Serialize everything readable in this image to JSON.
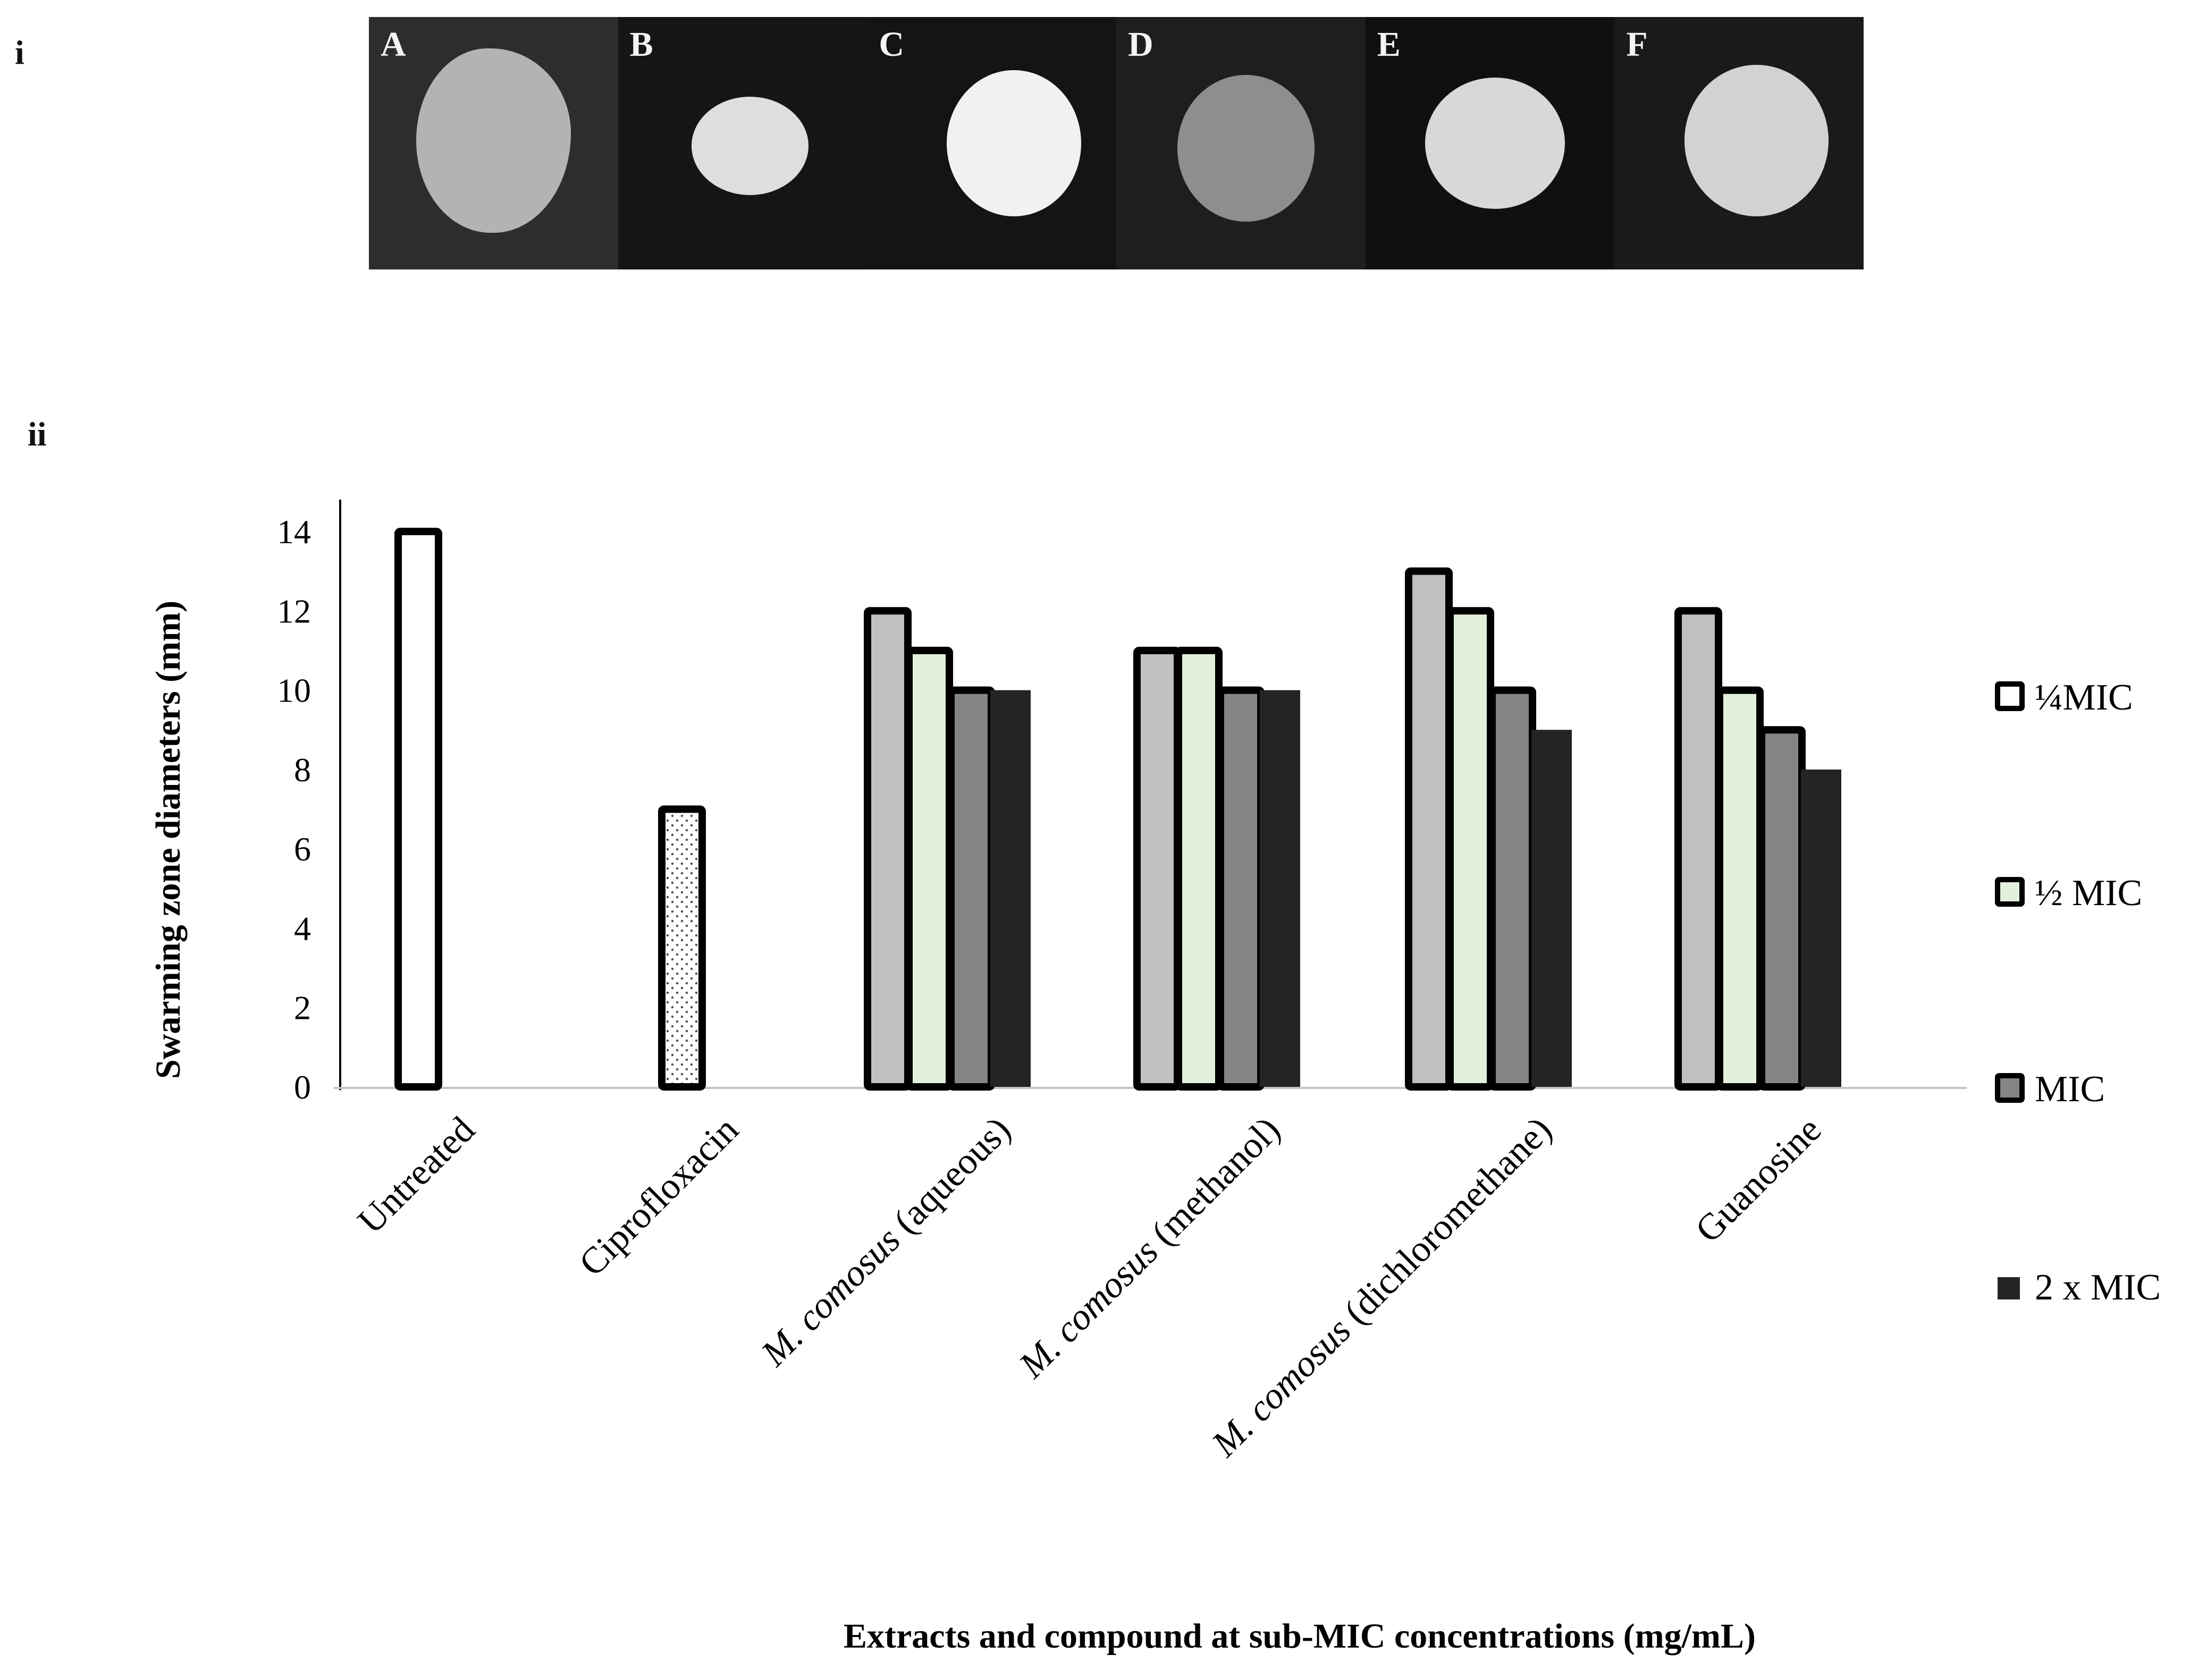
{
  "panel_labels": {
    "top": "i",
    "bottom": "ii"
  },
  "photo_panel": {
    "plates": [
      {
        "letter": "A",
        "background": "#2d2d2d",
        "colony_color": "#b3b3b3"
      },
      {
        "letter": "B",
        "background": "#151515",
        "colony_color": "#dedede"
      },
      {
        "letter": "C",
        "background": "#141414",
        "colony_color": "#f1f1f1"
      },
      {
        "letter": "D",
        "background": "#1e1e1e",
        "colony_color": "#8e8e8e"
      },
      {
        "letter": "E",
        "background": "#101010",
        "colony_color": "#d8d8d8"
      },
      {
        "letter": "F",
        "background": "#1a1a1a",
        "colony_color": "#d2d2d2"
      }
    ]
  },
  "chart_data": {
    "type": "bar",
    "xlabel": "Extracts and compound at sub-MIC concentrations (mg/mL)",
    "ylabel": "Swarming zone diameters (mm)",
    "ylim": [
      0,
      14
    ],
    "yticks": [
      "0",
      "2",
      "4",
      "6",
      "8",
      "10",
      "12",
      "14"
    ],
    "grid": false,
    "legend_position": "right",
    "categories": [
      {
        "prefix": "",
        "italic": "",
        "suffix": "Untreated"
      },
      {
        "prefix": "",
        "italic": "",
        "suffix": "Ciprofloxacin"
      },
      {
        "prefix": "",
        "italic": "M. comosus",
        "suffix": " (aqueous)"
      },
      {
        "prefix": "",
        "italic": "M. comosus",
        "suffix": " (methanol)"
      },
      {
        "prefix": "",
        "italic": "M. comosus",
        "suffix": " (dichloromethane)"
      },
      {
        "prefix": "",
        "italic": "",
        "suffix": "Guanosine"
      }
    ],
    "series": [
      {
        "name": "¼MIC",
        "color": "#c0c0c0",
        "outlined": true
      },
      {
        "name": "½ MIC",
        "color": "#e3f1dc",
        "outlined": true
      },
      {
        "name": "MIC",
        "color": "#858585",
        "outlined": true
      },
      {
        "name": "2 x MIC",
        "color": "#242424",
        "outlined": false
      }
    ],
    "bars": [
      {
        "category": 0,
        "value": 14,
        "fill": "#ffffff",
        "pattern": "none",
        "slot": 0
      },
      {
        "category": 1,
        "value": 7,
        "fill": "#ffffff",
        "pattern": "dots",
        "slot": 0
      },
      {
        "category": 2,
        "series": 0,
        "value": 12
      },
      {
        "category": 2,
        "series": 1,
        "value": 11
      },
      {
        "category": 2,
        "series": 2,
        "value": 10
      },
      {
        "category": 2,
        "series": 3,
        "value": 10
      },
      {
        "category": 3,
        "series": 0,
        "value": 11
      },
      {
        "category": 3,
        "series": 1,
        "value": 11
      },
      {
        "category": 3,
        "series": 2,
        "value": 10
      },
      {
        "category": 3,
        "series": 3,
        "value": 10
      },
      {
        "category": 4,
        "series": 0,
        "value": 13
      },
      {
        "category": 4,
        "series": 1,
        "value": 12
      },
      {
        "category": 4,
        "series": 2,
        "value": 10
      },
      {
        "category": 4,
        "series": 3,
        "value": 9
      },
      {
        "category": 5,
        "series": 0,
        "value": 12
      },
      {
        "category": 5,
        "series": 1,
        "value": 10
      },
      {
        "category": 5,
        "series": 2,
        "value": 9
      },
      {
        "category": 5,
        "series": 3,
        "value": 8
      }
    ],
    "legend": [
      {
        "label": "¼MIC",
        "color": "#ffffff",
        "outlined": true
      },
      {
        "label": "½ MIC",
        "color": "#e3f1dc",
        "outlined": true
      },
      {
        "label": "MIC",
        "color": "#858585",
        "outlined": true
      },
      {
        "label": "2 x MIC",
        "color": "#242424",
        "outlined": false
      }
    ]
  }
}
